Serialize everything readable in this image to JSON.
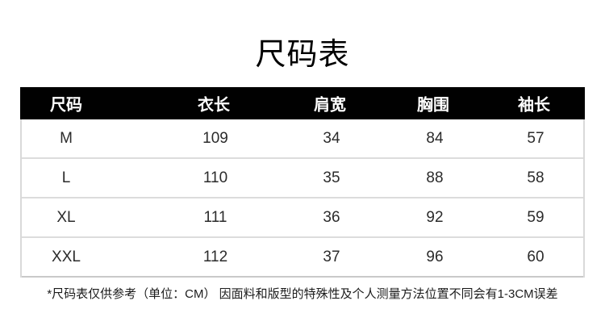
{
  "title": {
    "text": "尺码表"
  },
  "table": {
    "headers": [
      "尺码",
      "衣长",
      "肩宽",
      "胸围",
      "袖长"
    ],
    "rows": [
      [
        "M",
        "109",
        "34",
        "84",
        "57"
      ],
      [
        "L",
        "110",
        "35",
        "88",
        "58"
      ],
      [
        "XL",
        "111",
        "36",
        "92",
        "59"
      ],
      [
        "XXL",
        "112",
        "37",
        "96",
        "60"
      ]
    ]
  },
  "footnote": {
    "text": "*尺码表仅供参考（单位：CM） 因面料和版型的特殊性及个人测量方法位置不同会有1-3CM误差"
  },
  "chart_data": {
    "type": "table",
    "title": "尺码表",
    "unit": "CM",
    "columns": [
      "尺码",
      "衣长",
      "肩宽",
      "胸围",
      "袖长"
    ],
    "rows": [
      {
        "尺码": "M",
        "衣长": 109,
        "肩宽": 34,
        "胸围": 84,
        "袖长": 57
      },
      {
        "尺码": "L",
        "衣长": 110,
        "肩宽": 35,
        "胸围": 88,
        "袖长": 58
      },
      {
        "尺码": "XL",
        "衣长": 111,
        "肩宽": 36,
        "胸围": 92,
        "袖长": 59
      },
      {
        "尺码": "XXL",
        "衣长": 112,
        "肩宽": 37,
        "胸围": 96,
        "袖长": 60
      }
    ]
  },
  "colors": {
    "header_bg": "#010101",
    "header_text": "#ffffff",
    "body_text": "#2b2b2b",
    "separator": "#dcdcdc",
    "page_bg": "#ffffff"
  }
}
